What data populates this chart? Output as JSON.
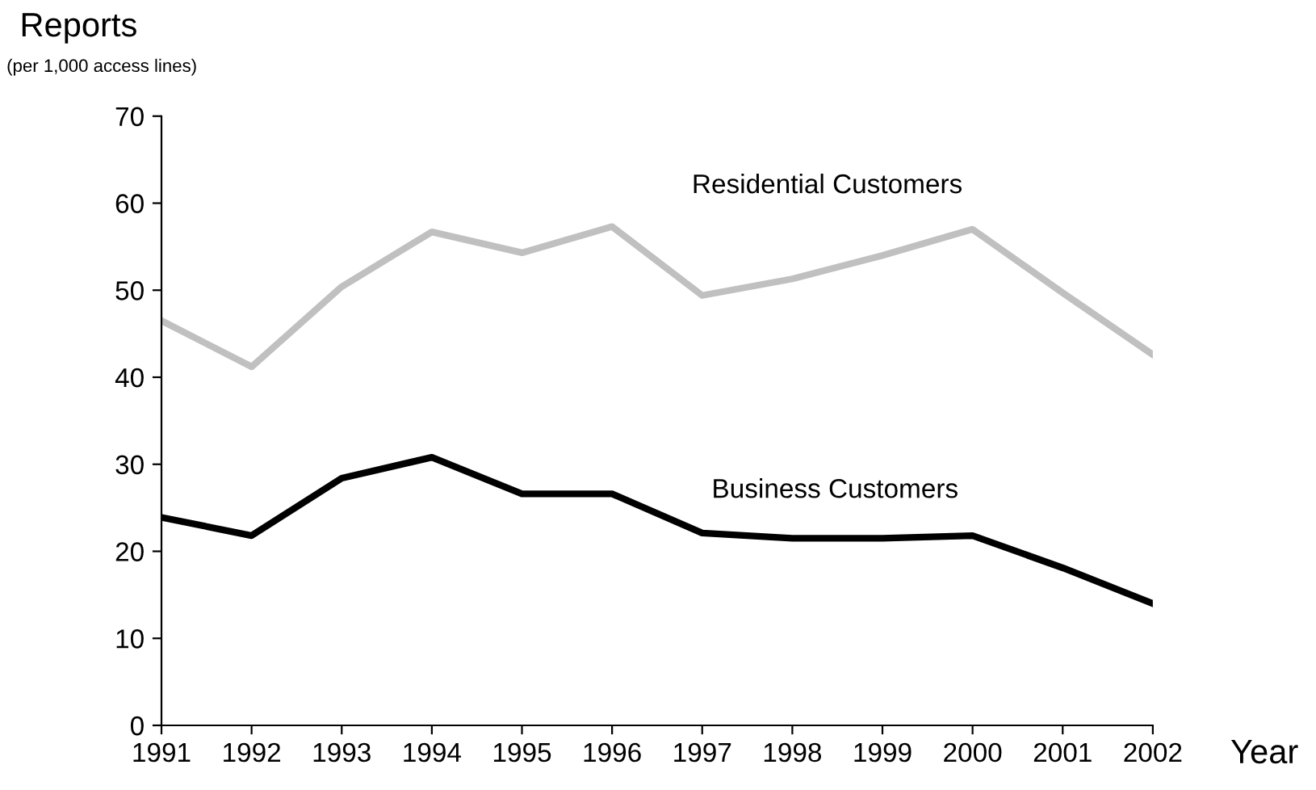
{
  "chart_data": {
    "type": "line",
    "ylabel": "Reports",
    "xlabel": "Year",
    "annotations": [
      "(per 1,000 access lines)"
    ],
    "x": [
      1991,
      1992,
      1993,
      1994,
      1995,
      1996,
      1997,
      1998,
      1999,
      2000,
      2001,
      2002
    ],
    "series": [
      {
        "name": "Residential Customers",
        "color": "#c0c0c0",
        "values": [
          46.5,
          41.2,
          50.4,
          56.7,
          54.3,
          57.3,
          49.4,
          51.3,
          54.0,
          57.0,
          49.7,
          42.6
        ]
      },
      {
        "name": "Business Customers",
        "color": "#000000",
        "values": [
          23.9,
          21.8,
          28.4,
          30.8,
          26.6,
          26.6,
          22.1,
          21.5,
          21.5,
          21.8,
          18.1,
          14.0
        ]
      }
    ],
    "xlim": [
      1991,
      2002
    ],
    "xticks": [
      1991,
      1992,
      1993,
      1994,
      1995,
      1996,
      1997,
      1998,
      1999,
      2000,
      2001,
      2002
    ],
    "ylim": [
      0,
      70
    ],
    "yticks": [
      0,
      10,
      20,
      30,
      40,
      50,
      60,
      70
    ],
    "grid": false,
    "legend": false,
    "marker": "none",
    "line_style": "solid"
  }
}
